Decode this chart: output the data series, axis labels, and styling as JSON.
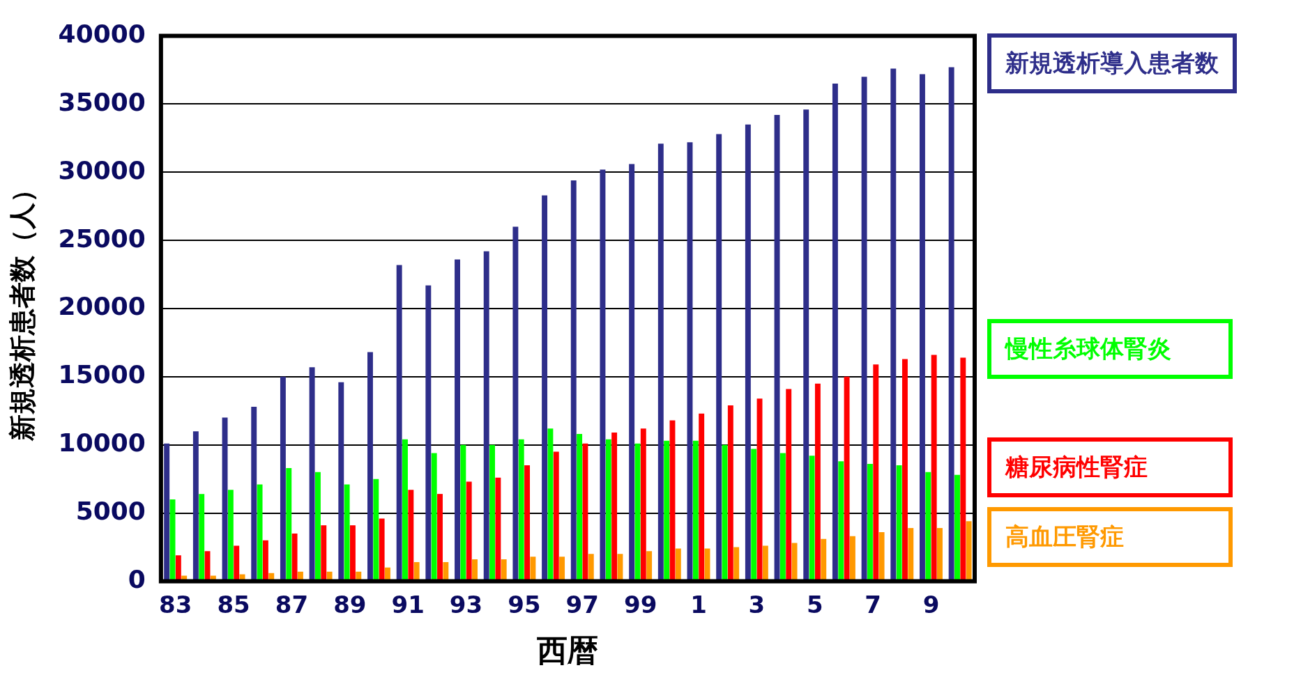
{
  "chart_data": {
    "type": "bar",
    "xlabel": "西暦",
    "ylabel": "新規透析患者数（人）",
    "categories": [
      "83",
      null,
      "85",
      null,
      "87",
      null,
      "89",
      null,
      "91",
      null,
      "93",
      null,
      "95",
      null,
      "97",
      null,
      "99",
      null,
      "1",
      null,
      "3",
      null,
      "5",
      null,
      "7",
      null,
      "9",
      null
    ],
    "series": [
      {
        "name": "新規透析導入患者数",
        "color": "#2e2e8a",
        "values": [
          10100,
          11000,
          12000,
          12800,
          15000,
          15700,
          14600,
          16800,
          23200,
          21700,
          23600,
          24200,
          26000,
          28300,
          29400,
          30200,
          30600,
          32100,
          32200,
          32800,
          33500,
          34200,
          34600,
          36500,
          37000,
          37600,
          37200,
          37700
        ]
      },
      {
        "name": "慢性糸球体腎炎",
        "color": "#00ff00",
        "values": [
          6000,
          6400,
          6700,
          7100,
          8300,
          8000,
          7100,
          7500,
          10400,
          9400,
          10000,
          10000,
          10400,
          11200,
          10800,
          10400,
          10100,
          10300,
          10300,
          10000,
          9700,
          9400,
          9200,
          8800,
          8600,
          8500,
          8000,
          7800
        ]
      },
      {
        "name": "糖尿病性腎症",
        "color": "#ff0000",
        "values": [
          1900,
          2200,
          2600,
          3000,
          3500,
          4100,
          4100,
          4600,
          6700,
          6400,
          7300,
          7600,
          8500,
          9500,
          10100,
          10900,
          11200,
          11800,
          12300,
          12900,
          13400,
          14100,
          14500,
          15000,
          15900,
          16300,
          16600,
          16400
        ]
      },
      {
        "name": "高血圧腎症",
        "color": "#ff9900",
        "values": [
          400,
          400,
          500,
          600,
          700,
          700,
          700,
          1000,
          1400,
          1400,
          1600,
          1600,
          1800,
          1800,
          2000,
          2000,
          2200,
          2400,
          2400,
          2500,
          2600,
          2800,
          3100,
          3300,
          3600,
          3900,
          3900,
          4400
        ]
      }
    ],
    "ylim": [
      0,
      40000
    ],
    "yticks": [
      0,
      5000,
      10000,
      15000,
      20000,
      25000,
      30000,
      35000,
      40000
    ],
    "grid": "y",
    "legend": "right"
  }
}
